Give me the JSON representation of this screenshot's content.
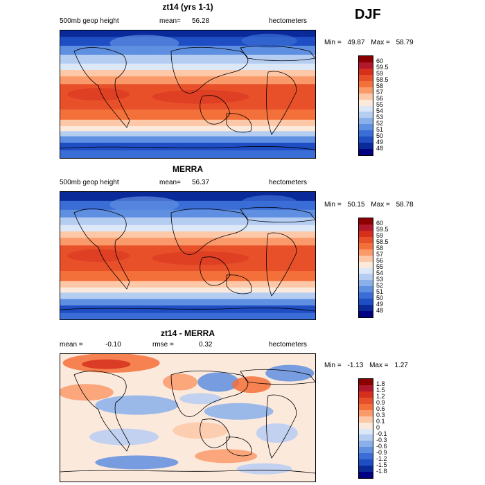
{
  "season": "DJF",
  "panels": [
    {
      "title": "zt14 (yrs 1-1)",
      "left_label": "500mb geop height",
      "mean_label": "mean=",
      "mean_value": "56.28",
      "units": "hectometers",
      "min_label": "Min =",
      "min_value": "49.87",
      "max_label": "Max =",
      "max_value": "58.79",
      "colorbar_labels": [
        "60",
        "59.5",
        "59",
        "58.5",
        "58",
        "57",
        "56",
        "55",
        "54",
        "53",
        "52",
        "51",
        "50",
        "49",
        "48"
      ]
    },
    {
      "title": "MERRA",
      "left_label": "500mb geop height",
      "mean_label": "mean=",
      "mean_value": "56.37",
      "units": "hectometers",
      "min_label": "Min =",
      "min_value": "50.15",
      "max_label": "Max =",
      "max_value": "58.78",
      "colorbar_labels": [
        "60",
        "59.5",
        "59",
        "58.5",
        "58",
        "57",
        "56",
        "55",
        "54",
        "53",
        "52",
        "51",
        "50",
        "49",
        "48"
      ]
    },
    {
      "title": "zt14 - MERRA",
      "left_label": "mean =",
      "left_value": "-0.10",
      "rmse_label": "rmse =",
      "rmse_value": "0.32",
      "units": "hectometers",
      "min_label": "Min =",
      "min_value": "-1.13",
      "max_label": "Max =",
      "max_value": "1.27",
      "colorbar_labels": [
        "1.8",
        "1.5",
        "1.2",
        "0.9",
        "0.6",
        "0.3",
        "0.1",
        "0",
        "-0.1",
        "-0.3",
        "-0.6",
        "-0.9",
        "-1.2",
        "-1.5",
        "-1.8"
      ]
    }
  ],
  "chart_data": {
    "type": "heatmap",
    "maps": [
      {
        "title": "zt14 (yrs 1-1)",
        "variable": "500mb geop height",
        "units": "hectometers",
        "mean": 56.28,
        "min": 49.87,
        "max": 58.79,
        "levels": [
          48,
          49,
          50,
          51,
          52,
          53,
          54,
          55,
          56,
          57,
          58,
          58.5,
          59,
          59.5,
          60
        ]
      },
      {
        "title": "MERRA",
        "variable": "500mb geop height",
        "units": "hectometers",
        "mean": 56.37,
        "min": 50.15,
        "max": 58.78,
        "levels": [
          48,
          49,
          50,
          51,
          52,
          53,
          54,
          55,
          56,
          57,
          58,
          58.5,
          59,
          59.5,
          60
        ]
      },
      {
        "title": "zt14 - MERRA",
        "units": "hectometers",
        "mean": -0.1,
        "rmse": 0.32,
        "min": -1.13,
        "max": 1.27,
        "levels": [
          -1.8,
          -1.5,
          -1.2,
          -0.9,
          -0.6,
          -0.3,
          -0.1,
          0,
          0.1,
          0.3,
          0.6,
          0.9,
          1.2,
          1.5,
          1.8
        ]
      }
    ],
    "colors": [
      "#8b0000",
      "#b2182b",
      "#d6301d",
      "#e8502a",
      "#f4703a",
      "#fa9a6a",
      "#fdc8a8",
      "#fbe9dc",
      "#dce8f8",
      "#b6cdf2",
      "#8ab0ea",
      "#5f8fe0",
      "#3a6dd6",
      "#1f4ec4",
      "#0a2a9a",
      "#000080"
    ]
  }
}
